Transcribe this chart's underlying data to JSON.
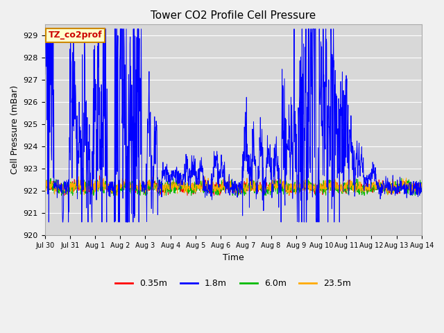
{
  "title": "Tower CO2 Profile Cell Pressure",
  "ylabel": "Cell Pressure (mBar)",
  "xlabel": "Time",
  "annotation": "TZ_co2prof",
  "ylim": [
    920.0,
    929.5
  ],
  "yticks": [
    920.0,
    921.0,
    922.0,
    923.0,
    924.0,
    925.0,
    926.0,
    927.0,
    928.0,
    929.0
  ],
  "xtick_labels": [
    "Jul 30",
    "Jul 31",
    "Aug 1",
    "Aug 2",
    "Aug 3",
    "Aug 4",
    "Aug 5",
    "Aug 6",
    "Aug 7",
    "Aug 8",
    "Aug 9",
    "Aug 10",
    "Aug 11",
    "Aug 12",
    "Aug 13",
    "Aug 14"
  ],
  "legend_entries": [
    "0.35m",
    "1.8m",
    "6.0m",
    "23.5m"
  ],
  "line_colors": [
    "#ff0000",
    "#0000ff",
    "#00bb00",
    "#ffaa00"
  ],
  "fig_bg_color": "#f0f0f0",
  "plot_bg_color": "#d8d8d8",
  "annotation_bg": "#ffffcc",
  "annotation_border": "#cc8800",
  "annotation_text_color": "#cc0000",
  "grid_color": "#ffffff",
  "seed": 42,
  "n_days": 15,
  "n_per_day": 96,
  "base": 922.15,
  "noise_small": 0.12,
  "noise_large": 0.25
}
